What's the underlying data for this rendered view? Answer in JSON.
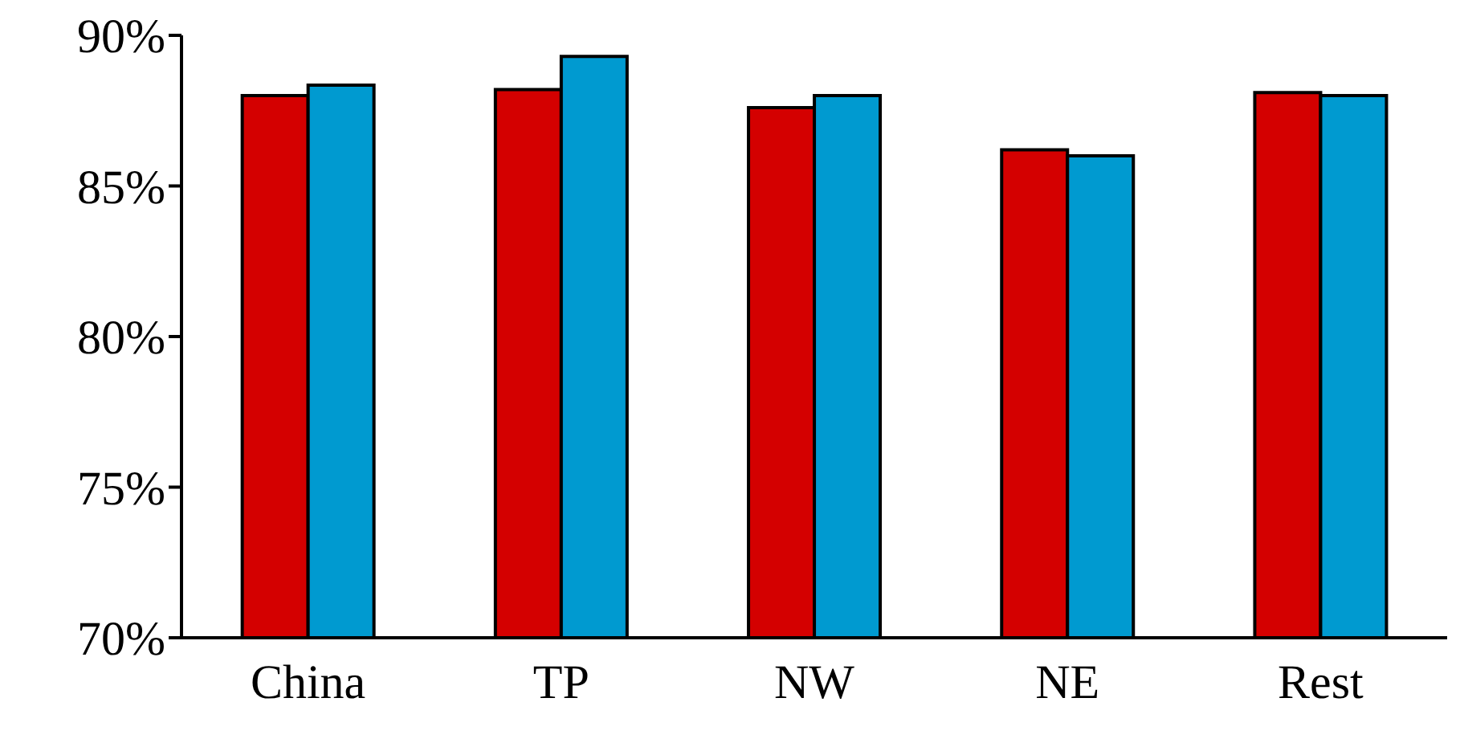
{
  "chart_data": {
    "type": "bar",
    "categories": [
      "China",
      "TP",
      "NW",
      "NE",
      "Rest"
    ],
    "series": [
      {
        "color": "#d40000",
        "values": [
          88.0,
          88.2,
          87.6,
          86.2,
          88.1
        ]
      },
      {
        "color": "#009ad0",
        "values": [
          88.35,
          89.3,
          88.0,
          86.0,
          88.0
        ]
      }
    ],
    "ylim": [
      70,
      90
    ],
    "yticks": [
      {
        "value": 70,
        "label": "70%"
      },
      {
        "value": 75,
        "label": "75%"
      },
      {
        "value": 80,
        "label": "80%"
      },
      {
        "value": 85,
        "label": "85%"
      },
      {
        "value": 90,
        "label": "90%"
      }
    ],
    "grid": false,
    "legend": false
  }
}
